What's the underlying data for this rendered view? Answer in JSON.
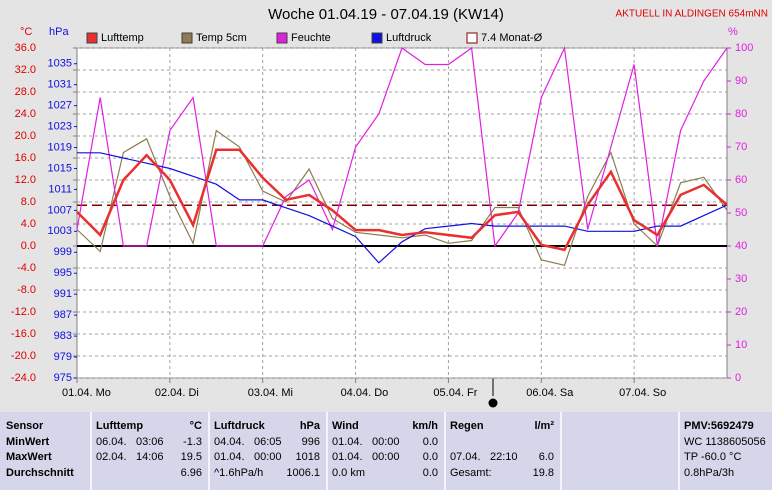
{
  "chart_data": {
    "type": "line",
    "title": "Woche 01.04.19 - 07.04.19 (KW14)",
    "annotation": "AKTUELL IN ALDINGEN 654mNN",
    "y_label": "°C",
    "y2_label": "hPa",
    "y3_label": "%",
    "x": [
      0,
      6,
      12,
      18,
      24,
      30,
      36,
      42,
      48,
      54,
      60,
      66,
      72,
      78,
      84,
      90,
      96,
      102,
      108,
      114,
      120,
      126,
      132,
      138,
      144,
      150,
      156,
      162,
      168
    ],
    "xlim": [
      0,
      168
    ],
    "xticks": [
      {
        "value": 0,
        "label": "01.04. Mo"
      },
      {
        "value": 24,
        "label": "02.04. Di"
      },
      {
        "value": 48,
        "label": "03.04. Mi"
      },
      {
        "value": 72,
        "label": "04.04. Do"
      },
      {
        "value": 96,
        "label": "05.04. Fr"
      },
      {
        "value": 120,
        "label": "06.04. Sa"
      },
      {
        "value": 144,
        "label": "07.04. So"
      }
    ],
    "ylim": [
      -24,
      36
    ],
    "yticks": [
      {
        "value": -24,
        "label": "-24.0"
      },
      {
        "value": -20,
        "label": "-20.0"
      },
      {
        "value": -16,
        "label": "-16.0"
      },
      {
        "value": -12,
        "label": "-12.0"
      },
      {
        "value": -8,
        "label": "-8.0"
      },
      {
        "value": -4,
        "label": "-4.0"
      },
      {
        "value": 0,
        "label": "0.0"
      },
      {
        "value": 4,
        "label": "4.0"
      },
      {
        "value": 8,
        "label": "8.0"
      },
      {
        "value": 12,
        "label": "12.0"
      },
      {
        "value": 16,
        "label": "16.0"
      },
      {
        "value": 20,
        "label": "20.0"
      },
      {
        "value": 24,
        "label": "24.0"
      },
      {
        "value": 28,
        "label": "28.0"
      },
      {
        "value": 32,
        "label": "32.0"
      },
      {
        "value": 36,
        "label": "36.0"
      }
    ],
    "y2lim": [
      975,
      1038
    ],
    "y2ticks": [
      975,
      979,
      983,
      987,
      991,
      995,
      999,
      1003,
      1007,
      1011,
      1015,
      1019,
      1023,
      1027,
      1031,
      1035
    ],
    "y3lim": [
      0,
      100
    ],
    "y3ticks": [
      0,
      10,
      20,
      30,
      40,
      50,
      60,
      70,
      80,
      90,
      100
    ],
    "grid": true,
    "series": [
      {
        "name": "Lufttemp",
        "color": "#e83030",
        "axis": "y",
        "values": [
          6.2,
          2.0,
          12.0,
          16.5,
          12.0,
          3.8,
          17.5,
          17.5,
          12.4,
          8.4,
          9.3,
          6.5,
          2.9,
          2.9,
          2.0,
          2.5,
          2.0,
          1.5,
          5.6,
          6.2,
          0.2,
          -0.7,
          7.5,
          13.5,
          4.7,
          2.0,
          9.3,
          11.1,
          7.5
        ]
      },
      {
        "name": "Temp 5cm",
        "color": "#8c7c50",
        "axis": "y",
        "values": [
          3.0,
          -1.0,
          17.0,
          19.5,
          9.0,
          0.5,
          21.0,
          18.0,
          10.0,
          8.0,
          14.0,
          5.0,
          2.5,
          2.0,
          1.5,
          2.0,
          0.5,
          1.0,
          7.0,
          7.0,
          -2.5,
          -3.5,
          9.0,
          17.0,
          4.0,
          0.0,
          11.5,
          12.5,
          6.5
        ]
      },
      {
        "name": "Feuchte",
        "color": "#e020e0",
        "axis": "y3",
        "values": [
          45,
          85,
          40,
          40,
          75,
          85,
          40,
          40,
          40,
          55,
          60,
          45,
          70,
          80,
          100,
          95,
          95,
          100,
          40,
          50,
          85,
          100,
          45,
          70,
          95,
          40,
          75,
          90,
          100
        ]
      },
      {
        "name": "Luftdruck",
        "color": "#1010e0",
        "axis": "y2",
        "values": [
          1018,
          1018,
          1017,
          1016,
          1015,
          1013.5,
          1012,
          1009,
          1009,
          1007.5,
          1006,
          1004,
          1002,
          997,
          1001,
          1003.5,
          1004,
          1004.5,
          1004,
          1004,
          1004,
          1004,
          1003,
          1003,
          1003,
          1004,
          1004,
          1006,
          1008
        ]
      }
    ],
    "reference_line": {
      "name": "7.4 Monat-Ø",
      "value": 7.4,
      "color": "#800000"
    }
  },
  "table": {
    "rows": [
      [
        [
          "Sensor"
        ],
        [
          "Lufttemp",
          "°C"
        ],
        [
          "Luftdruck",
          "hPa"
        ],
        [
          "Wind",
          "km/h"
        ],
        [
          "Regen",
          "l/m²"
        ],
        [],
        [
          "PMV:5692479"
        ]
      ],
      [
        [
          "MinWert"
        ],
        [
          "06.04.",
          "03:06",
          "-1.3"
        ],
        [
          "04.04.",
          "06:05",
          "996"
        ],
        [
          "01.04.",
          "00:00",
          "0.0"
        ],
        [],
        [],
        [
          "WC 1138605056"
        ]
      ],
      [
        [
          "MaxWert"
        ],
        [
          "02.04.",
          "14:06",
          "19.5"
        ],
        [
          "01.04.",
          "00:00",
          "1018"
        ],
        [
          "01.04.",
          "00:00",
          "0.0"
        ],
        [
          "07.04.",
          "22:10",
          "6.0"
        ],
        [],
        [
          "TP -60.0 °C"
        ]
      ],
      [
        [
          "Durchschnitt"
        ],
        [
          "6.96"
        ],
        [
          "^1.6hPa/h",
          "1006.1"
        ],
        [
          "0.0 km",
          "0.0"
        ],
        [
          "Gesamt:",
          "19.8"
        ],
        [],
        [
          "0.8hPa/3h"
        ]
      ]
    ]
  }
}
